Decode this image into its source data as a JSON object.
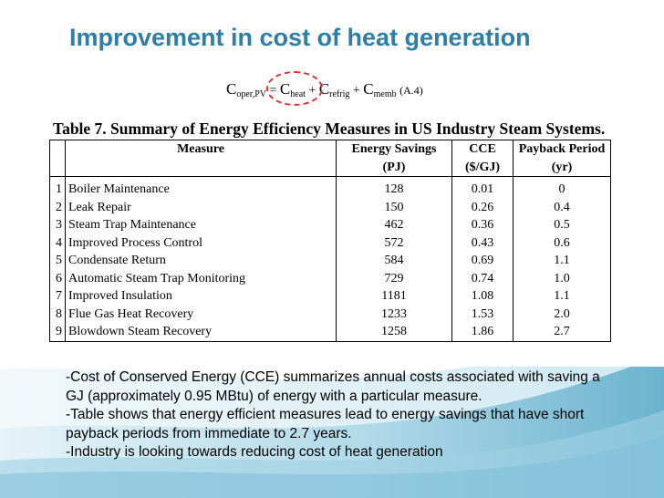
{
  "slide": {
    "title": "Improvement in cost of heat generation",
    "equation": {
      "lhs_symbol": "C",
      "lhs_sub": "oper,PV",
      "equals": "=",
      "t1_symbol": "C",
      "t1_sub": "heat",
      "plus1": "+",
      "t2_symbol": "C",
      "t2_sub": "refrig",
      "plus2": "+",
      "t3_symbol": "C",
      "t3_sub": "memb",
      "ref": "(A.4)"
    },
    "table": {
      "caption": "Table 7.  Summary of Energy Efficiency Measures in US Industry Steam Systems.",
      "header_top": {
        "measure": "Measure",
        "savings": "Energy Savings",
        "cce": "CCE",
        "payback": "Payback Period"
      },
      "header_units": {
        "savings": "(PJ)",
        "cce": "($/GJ)",
        "payback": "(yr)"
      },
      "rows": [
        {
          "num": "1",
          "measure": "Boiler Maintenance",
          "savings": "128",
          "cce": "0.01",
          "payback": "0"
        },
        {
          "num": "2",
          "measure": "Leak Repair",
          "savings": "150",
          "cce": "0.26",
          "payback": "0.4"
        },
        {
          "num": "3",
          "measure": "Steam Trap Maintenance",
          "savings": "462",
          "cce": "0.36",
          "payback": "0.5"
        },
        {
          "num": "4",
          "measure": "Improved Process Control",
          "savings": "572",
          "cce": "0.43",
          "payback": "0.6"
        },
        {
          "num": "5",
          "measure": "Condensate Return",
          "savings": "584",
          "cce": "0.69",
          "payback": "1.1"
        },
        {
          "num": "6",
          "measure": "Automatic Steam Trap Monitoring",
          "savings": "729",
          "cce": "0.74",
          "payback": "1.0"
        },
        {
          "num": "7",
          "measure": "Improved Insulation",
          "savings": "1181",
          "cce": "1.08",
          "payback": "1.1"
        },
        {
          "num": "8",
          "measure": "Flue Gas Heat Recovery",
          "savings": "1233",
          "cce": "1.53",
          "payback": "2.0"
        },
        {
          "num": "9",
          "measure": "Blowdown Steam Recovery",
          "savings": "1258",
          "cce": "1.86",
          "payback": "2.7"
        }
      ]
    },
    "bullets": [
      "-Cost of Conserved Energy (CCE) summarizes annual costs associated with saving a GJ (approximately 0.95 MBtu) of energy with a particular measure.",
      "-Table shows that energy efficient measures lead to energy savings that have short payback periods from immediate to 2.7 years.",
      "-Industry is looking towards reducing cost of heat generation"
    ],
    "colors": {
      "title": "#2d7fa7",
      "highlight": "#e03030",
      "swoosh_dark": "#5ba9c9",
      "swoosh_light": "#a9d6e6"
    }
  }
}
